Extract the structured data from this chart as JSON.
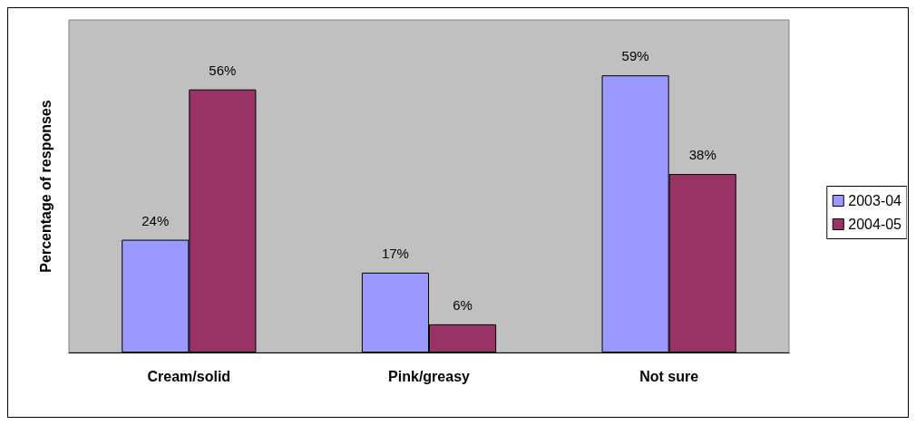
{
  "chart_data": {
    "type": "bar",
    "ylabel": "Percentage of responses",
    "categories": [
      "Cream/solid",
      "Pink/greasy",
      "Not sure"
    ],
    "series": [
      {
        "name": "2003-04",
        "color": "#9999ff",
        "values": [
          24,
          17,
          59
        ],
        "value_labels": [
          "24%",
          "17%",
          "59%"
        ]
      },
      {
        "name": "2004-05",
        "color": "#993366",
        "values": [
          56,
          6,
          38
        ],
        "value_labels": [
          "56%",
          "6%",
          "38%"
        ]
      }
    ],
    "grid": false,
    "legend": "right"
  }
}
